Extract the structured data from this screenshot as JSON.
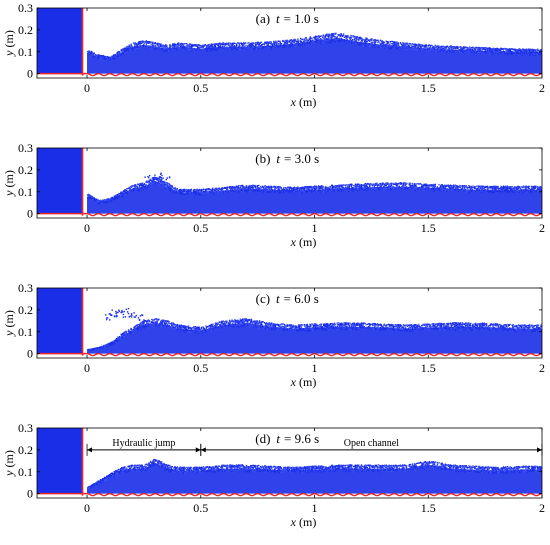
{
  "chart_data": [
    {
      "type": "scatter",
      "panel_label": "(a)",
      "time_var": "t",
      "time_text": "= 1.0 s",
      "xlabel_var": "x",
      "xlabel_unit": "(m)",
      "ylabel_var": "y",
      "ylabel_unit": "(m)",
      "xlim": [
        -0.22,
        2.0
      ],
      "ylim": [
        -0.02,
        0.3
      ],
      "xticks": [
        {
          "value": 0,
          "label": "0"
        },
        {
          "value": 0.5,
          "label": "0.5"
        },
        {
          "value": 1,
          "label": "1"
        },
        {
          "value": 1.5,
          "label": "1.5"
        },
        {
          "value": 2,
          "label": "2"
        }
      ],
      "yticks": [
        {
          "value": 0,
          "label": "0"
        },
        {
          "value": 0.1,
          "label": "0.1"
        },
        {
          "value": 0.2,
          "label": "0.2"
        },
        {
          "value": 0.3,
          "label": "0.3"
        }
      ],
      "reservoir": {
        "x": [
          -0.22,
          -0.02
        ],
        "y_top": 0.3
      },
      "free_surface": {
        "x": [
          0.0,
          0.05,
          0.1,
          0.15,
          0.2,
          0.25,
          0.3,
          0.35,
          0.4,
          0.5,
          0.6,
          0.7,
          0.8,
          0.9,
          1.0,
          1.05,
          1.1,
          1.15,
          1.2,
          1.3,
          1.4,
          1.5,
          1.6,
          1.7,
          1.8,
          1.9,
          2.0
        ],
        "y": [
          0.11,
          0.085,
          0.075,
          0.11,
          0.14,
          0.15,
          0.14,
          0.13,
          0.14,
          0.13,
          0.14,
          0.14,
          0.145,
          0.155,
          0.17,
          0.18,
          0.185,
          0.175,
          0.165,
          0.15,
          0.14,
          0.13,
          0.125,
          0.12,
          0.115,
          0.112,
          0.11
        ]
      },
      "spray": [],
      "annotations": []
    },
    {
      "type": "scatter",
      "panel_label": "(b)",
      "time_var": "t",
      "time_text": "= 3.0 s",
      "xlabel_var": "x",
      "xlabel_unit": "(m)",
      "ylabel_var": "y",
      "ylabel_unit": "(m)",
      "xlim": [
        -0.22,
        2.0
      ],
      "ylim": [
        -0.02,
        0.3
      ],
      "xticks": [
        {
          "value": 0,
          "label": "0"
        },
        {
          "value": 0.5,
          "label": "0.5"
        },
        {
          "value": 1,
          "label": "1"
        },
        {
          "value": 1.5,
          "label": "1.5"
        },
        {
          "value": 2,
          "label": "2"
        }
      ],
      "yticks": [
        {
          "value": 0,
          "label": "0"
        },
        {
          "value": 0.1,
          "label": "0.1"
        },
        {
          "value": 0.2,
          "label": "0.2"
        },
        {
          "value": 0.3,
          "label": "0.3"
        }
      ],
      "reservoir": {
        "x": [
          -0.22,
          -0.02
        ],
        "y_top": 0.3
      },
      "free_surface": {
        "x": [
          0.0,
          0.05,
          0.1,
          0.15,
          0.2,
          0.25,
          0.3,
          0.35,
          0.4,
          0.5,
          0.6,
          0.7,
          0.8,
          0.9,
          1.0,
          1.1,
          1.2,
          1.3,
          1.4,
          1.5,
          1.6,
          1.7,
          1.8,
          1.9,
          2.0
        ],
        "y": [
          0.09,
          0.06,
          0.07,
          0.1,
          0.13,
          0.14,
          0.17,
          0.14,
          0.11,
          0.11,
          0.12,
          0.13,
          0.125,
          0.12,
          0.125,
          0.13,
          0.135,
          0.14,
          0.14,
          0.135,
          0.13,
          0.125,
          0.125,
          0.125,
          0.125
        ]
      },
      "spray": [
        [
          0.3,
          0.18
        ],
        [
          0.33,
          0.17
        ],
        [
          0.28,
          0.16
        ]
      ],
      "annotations": []
    },
    {
      "type": "scatter",
      "panel_label": "(c)",
      "time_var": "t",
      "time_text": "= 6.0 s",
      "xlabel_var": "x",
      "xlabel_unit": "(m)",
      "ylabel_var": "y",
      "ylabel_unit": "(m)",
      "xlim": [
        -0.22,
        2.0
      ],
      "ylim": [
        -0.02,
        0.3
      ],
      "xticks": [
        {
          "value": 0,
          "label": "0"
        },
        {
          "value": 0.5,
          "label": "0.5"
        },
        {
          "value": 1,
          "label": "1"
        },
        {
          "value": 1.5,
          "label": "1.5"
        },
        {
          "value": 2,
          "label": "2"
        }
      ],
      "yticks": [
        {
          "value": 0,
          "label": "0"
        },
        {
          "value": 0.1,
          "label": "0.1"
        },
        {
          "value": 0.2,
          "label": "0.2"
        },
        {
          "value": 0.3,
          "label": "0.3"
        }
      ],
      "reservoir": {
        "x": [
          -0.22,
          -0.02
        ],
        "y_top": 0.3
      },
      "free_surface": {
        "x": [
          0.0,
          0.05,
          0.1,
          0.15,
          0.2,
          0.25,
          0.3,
          0.35,
          0.4,
          0.5,
          0.6,
          0.7,
          0.8,
          0.9,
          1.0,
          1.1,
          1.2,
          1.3,
          1.4,
          1.5,
          1.6,
          1.7,
          1.8,
          1.9,
          2.0
        ],
        "y": [
          0.02,
          0.03,
          0.05,
          0.09,
          0.12,
          0.15,
          0.16,
          0.15,
          0.13,
          0.12,
          0.15,
          0.16,
          0.14,
          0.13,
          0.135,
          0.14,
          0.14,
          0.135,
          0.13,
          0.135,
          0.14,
          0.14,
          0.135,
          0.13,
          0.13
        ]
      },
      "spray": [
        [
          0.13,
          0.19
        ],
        [
          0.15,
          0.2
        ],
        [
          0.1,
          0.17
        ],
        [
          0.18,
          0.18
        ],
        [
          0.22,
          0.17
        ]
      ],
      "annotations": []
    },
    {
      "type": "scatter",
      "panel_label": "(d)",
      "time_var": "t",
      "time_text": "= 9.6 s",
      "xlabel_var": "x",
      "xlabel_unit": "(m)",
      "ylabel_var": "y",
      "ylabel_unit": "(m)",
      "xlim": [
        -0.22,
        2.0
      ],
      "ylim": [
        -0.02,
        0.3
      ],
      "xticks": [
        {
          "value": 0,
          "label": "0"
        },
        {
          "value": 0.5,
          "label": "0.5"
        },
        {
          "value": 1,
          "label": "1"
        },
        {
          "value": 1.5,
          "label": "1.5"
        },
        {
          "value": 2,
          "label": "2"
        }
      ],
      "yticks": [
        {
          "value": 0,
          "label": "0"
        },
        {
          "value": 0.1,
          "label": "0.1"
        },
        {
          "value": 0.2,
          "label": "0.2"
        },
        {
          "value": 0.3,
          "label": "0.3"
        }
      ],
      "reservoir": {
        "x": [
          -0.22,
          -0.02
        ],
        "y_top": 0.3
      },
      "free_surface": {
        "x": [
          0.0,
          0.05,
          0.1,
          0.15,
          0.2,
          0.25,
          0.3,
          0.35,
          0.4,
          0.5,
          0.6,
          0.7,
          0.8,
          0.9,
          1.0,
          1.1,
          1.2,
          1.3,
          1.4,
          1.5,
          1.55,
          1.6,
          1.7,
          1.8,
          1.9,
          2.0
        ],
        "y": [
          0.03,
          0.06,
          0.09,
          0.12,
          0.13,
          0.13,
          0.16,
          0.13,
          0.12,
          0.12,
          0.13,
          0.13,
          0.125,
          0.12,
          0.125,
          0.13,
          0.13,
          0.13,
          0.13,
          0.15,
          0.14,
          0.13,
          0.125,
          0.12,
          0.125,
          0.125
        ]
      },
      "spray": [],
      "annotations": [
        {
          "text": "Hydraulic jump",
          "x_start": 0.0,
          "x_end": 0.5,
          "y": 0.2
        },
        {
          "text": "Open channel",
          "x_start": 0.5,
          "x_end": 2.0,
          "y": 0.2
        }
      ]
    }
  ],
  "colors": {
    "particles": "#1a2ee8",
    "particles_light": "#3d52f5",
    "boundary": "#e8262b",
    "axis": "#000000"
  }
}
